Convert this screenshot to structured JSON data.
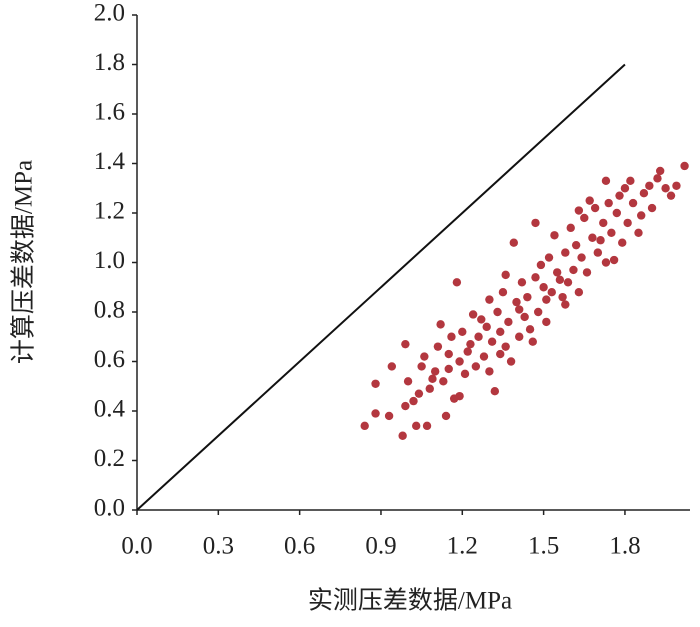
{
  "chart_data": {
    "type": "scatter",
    "x_label": "实测压差数据/MPa",
    "y_label": "计算压差数据/MPa",
    "xlim": [
      0,
      2.04
    ],
    "ylim": [
      0,
      2.0
    ],
    "xticks": [
      {
        "value": 0,
        "label": "0.0"
      },
      {
        "value": 0.3,
        "label": "0.3"
      },
      {
        "value": 0.6,
        "label": "0.6"
      },
      {
        "value": 0.9,
        "label": "0.9"
      },
      {
        "value": 1.2,
        "label": "1.2"
      },
      {
        "value": 1.5,
        "label": "1.5"
      },
      {
        "value": 1.8,
        "label": "1.8"
      }
    ],
    "yticks": [
      {
        "value": 0,
        "label": "0.0"
      },
      {
        "value": 0.2,
        "label": "0.2"
      },
      {
        "value": 0.4,
        "label": "0.4"
      },
      {
        "value": 0.6,
        "label": "0.6"
      },
      {
        "value": 0.8,
        "label": "0.8"
      },
      {
        "value": 1,
        "label": "1.0"
      },
      {
        "value": 1.2,
        "label": "1.2"
      },
      {
        "value": 1.4,
        "label": "1.4"
      },
      {
        "value": 1.6,
        "label": "1.6"
      },
      {
        "value": 1.8,
        "label": "1.8"
      },
      {
        "value": 2,
        "label": "2.0"
      }
    ],
    "reference_line": {
      "x": [
        0,
        1.8
      ],
      "y": [
        0,
        1.8
      ],
      "color": "#111111"
    },
    "color": "#b3373f",
    "x": [
      0.84,
      0.88,
      0.93,
      0.88,
      0.94,
      0.99,
      0.98,
      1.03,
      1.07,
      0.99,
      1.04,
      1.09,
      1.12,
      1.18,
      1.15,
      1.14,
      1.19,
      1.23,
      1.27,
      1.3,
      1.34,
      1.32,
      1.36,
      1.39,
      1.41,
      1.45,
      1.47,
      1.49,
      1.51,
      1.54,
      1.56,
      1.58,
      1.62,
      1.63,
      1.67,
      1.71,
      1.73,
      1.76,
      1.78,
      1.82,
      1.86,
      1.89,
      1.93,
      1.99,
      2.02,
      1.97,
      1.0,
      1.02,
      1.05,
      1.06,
      1.08,
      1.1,
      1.11,
      1.13,
      1.15,
      1.16,
      1.17,
      1.19,
      1.2,
      1.21,
      1.22,
      1.24,
      1.25,
      1.26,
      1.28,
      1.29,
      1.3,
      1.31,
      1.33,
      1.34,
      1.35,
      1.36,
      1.37,
      1.38,
      1.4,
      1.41,
      1.42,
      1.43,
      1.44,
      1.46,
      1.47,
      1.48,
      1.5,
      1.51,
      1.52,
      1.53,
      1.55,
      1.57,
      1.58,
      1.59,
      1.6,
      1.61,
      1.63,
      1.64,
      1.65,
      1.66,
      1.68,
      1.69,
      1.7,
      1.72,
      1.73,
      1.74,
      1.75,
      1.77,
      1.79,
      1.8,
      1.81,
      1.83,
      1.85,
      1.87,
      1.9,
      1.92,
      1.95
    ],
    "values": [
      0.34,
      0.39,
      0.38,
      0.51,
      0.58,
      0.67,
      0.3,
      0.34,
      0.34,
      0.42,
      0.47,
      0.53,
      0.75,
      0.92,
      0.63,
      0.38,
      0.46,
      0.67,
      0.77,
      0.85,
      0.63,
      0.48,
      0.95,
      1.08,
      0.81,
      0.73,
      1.16,
      0.99,
      0.85,
      1.11,
      0.93,
      0.83,
      1.07,
      1.21,
      1.25,
      1.09,
      1.33,
      1.01,
      1.27,
      1.33,
      1.19,
      1.31,
      1.37,
      1.31,
      1.39,
      1.27,
      0.52,
      0.44,
      0.58,
      0.62,
      0.49,
      0.56,
      0.66,
      0.52,
      0.57,
      0.7,
      0.45,
      0.6,
      0.72,
      0.55,
      0.64,
      0.79,
      0.58,
      0.7,
      0.62,
      0.74,
      0.56,
      0.68,
      0.8,
      0.72,
      0.88,
      0.66,
      0.76,
      0.6,
      0.84,
      0.7,
      0.92,
      0.78,
      0.86,
      0.68,
      0.94,
      0.8,
      0.9,
      0.76,
      1.02,
      0.88,
      0.96,
      0.86,
      1.04,
      0.92,
      1.14,
      0.97,
      0.88,
      1.02,
      1.18,
      0.96,
      1.1,
      1.22,
      1.04,
      1.16,
      1.0,
      1.24,
      1.12,
      1.2,
      1.08,
      1.3,
      1.16,
      1.24,
      1.12,
      1.28,
      1.22,
      1.34,
      1.3
    ]
  }
}
